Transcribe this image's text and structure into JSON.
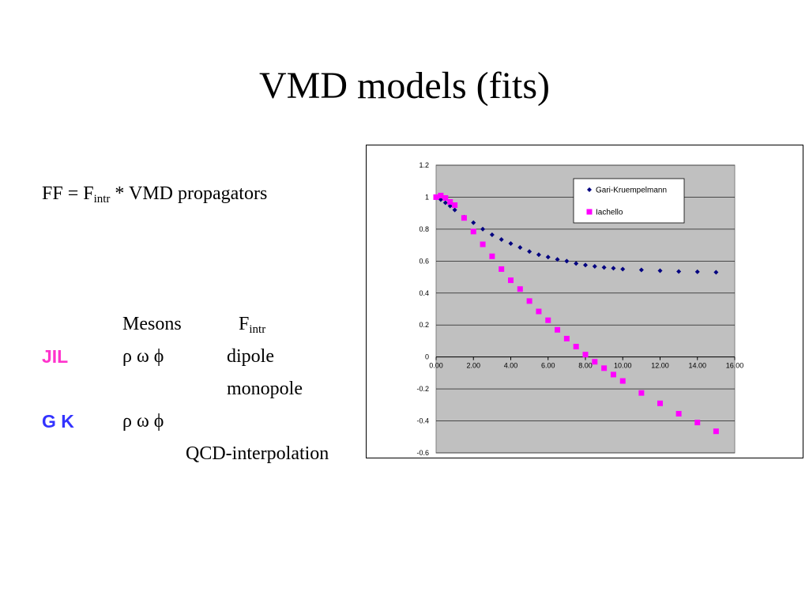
{
  "slide": {
    "title": "VMD  models (fits)",
    "formula": {
      "prefix": "FF = F",
      "sub": "intr",
      "suffix": " * VMD propagators"
    },
    "table": {
      "header_mesons": "Mesons",
      "header_fintr_main": "F",
      "header_fintr_sub": "intr",
      "rows": [
        {
          "model": "JIL",
          "model_color": "#ff33cc",
          "mesons": "ρ  ω  ϕ",
          "fintr": "dipole"
        },
        {
          "model": "",
          "model_color": "#000000",
          "mesons": "",
          "fintr": "monopole"
        },
        {
          "model": "G K",
          "model_color": "#3333ff",
          "mesons": "ρ  ω  ϕ",
          "fintr": ""
        },
        {
          "model": "",
          "model_color": "#000000",
          "mesons": "",
          "fintr": "QCD-interpolation"
        }
      ]
    }
  },
  "chart_data": {
    "type": "scatter",
    "title": "",
    "xlabel": "",
    "ylabel": "",
    "xlim": [
      0,
      16
    ],
    "ylim": [
      -0.6,
      1.2
    ],
    "x_ticks": [
      "0.00",
      "2.00",
      "4.00",
      "6.00",
      "8.00",
      "10.00",
      "12.00",
      "14.00",
      "16.00"
    ],
    "y_ticks": [
      "1.2",
      "1",
      "0.8",
      "0.6",
      "0.4",
      "0.2",
      "0",
      "-0.2",
      "-0.4",
      "-0.6"
    ],
    "grid": true,
    "plot_background": "#c0c0c0",
    "legend_position": "top-right",
    "series": [
      {
        "name": "Gari-Kruempelmann",
        "marker": "diamond",
        "color": "#000080",
        "points": [
          [
            0.0,
            1.0
          ],
          [
            0.25,
            0.985
          ],
          [
            0.5,
            0.965
          ],
          [
            0.75,
            0.945
          ],
          [
            1.0,
            0.92
          ],
          [
            1.5,
            0.875
          ],
          [
            2.0,
            0.84
          ],
          [
            2.5,
            0.8
          ],
          [
            3.0,
            0.765
          ],
          [
            3.5,
            0.735
          ],
          [
            4.0,
            0.71
          ],
          [
            4.5,
            0.685
          ],
          [
            5.0,
            0.66
          ],
          [
            5.5,
            0.64
          ],
          [
            6.0,
            0.625
          ],
          [
            6.5,
            0.61
          ],
          [
            7.0,
            0.6
          ],
          [
            7.5,
            0.585
          ],
          [
            8.0,
            0.575
          ],
          [
            8.5,
            0.567
          ],
          [
            9.0,
            0.56
          ],
          [
            9.5,
            0.555
          ],
          [
            10.0,
            0.55
          ],
          [
            11.0,
            0.545
          ],
          [
            12.0,
            0.54
          ],
          [
            13.0,
            0.535
          ],
          [
            14.0,
            0.533
          ],
          [
            15.0,
            0.53
          ]
        ]
      },
      {
        "name": "Iachello",
        "marker": "square",
        "color": "#ff00ff",
        "points": [
          [
            0.0,
            1.0
          ],
          [
            0.25,
            1.01
          ],
          [
            0.5,
            0.995
          ],
          [
            0.75,
            0.97
          ],
          [
            1.0,
            0.95
          ],
          [
            1.5,
            0.87
          ],
          [
            2.0,
            0.785
          ],
          [
            2.5,
            0.705
          ],
          [
            3.0,
            0.63
          ],
          [
            3.5,
            0.55
          ],
          [
            4.0,
            0.48
          ],
          [
            4.5,
            0.425
          ],
          [
            5.0,
            0.35
          ],
          [
            5.5,
            0.285
          ],
          [
            6.0,
            0.23
          ],
          [
            6.5,
            0.17
          ],
          [
            7.0,
            0.115
          ],
          [
            7.5,
            0.065
          ],
          [
            8.0,
            0.015
          ],
          [
            8.5,
            -0.03
          ],
          [
            9.0,
            -0.07
          ],
          [
            9.5,
            -0.11
          ],
          [
            10.0,
            -0.15
          ],
          [
            11.0,
            -0.225
          ],
          [
            12.0,
            -0.29
          ],
          [
            13.0,
            -0.355
          ],
          [
            14.0,
            -0.41
          ],
          [
            15.0,
            -0.465
          ]
        ]
      }
    ]
  }
}
